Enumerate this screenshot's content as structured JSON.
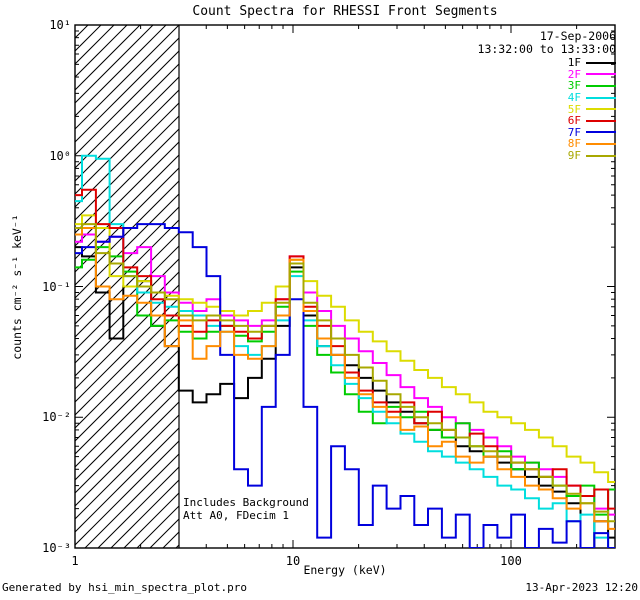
{
  "title": "Count Spectra for RHESSI Front Segments",
  "annotations": {
    "date": "17-Sep-2006",
    "time_range": "13:32:00 to 13:33:00",
    "note_line1": "Includes Background",
    "note_line2": "Att A0, FDecim 1"
  },
  "footer": {
    "left": "Generated by hsi_min_spectra_plot.pro",
    "right": "13-Apr-2023 12:20"
  },
  "chart_data": {
    "type": "line",
    "mode": "histogram-step",
    "title": "Count Spectra for RHESSI Front Segments",
    "xlabel": "Energy (keV)",
    "ylabel": "counts cm⁻² s⁻¹ keV⁻¹",
    "xscale": "log",
    "yscale": "log",
    "xlim": [
      1,
      300
    ],
    "ylim": [
      0.001,
      10
    ],
    "grid": false,
    "legend_position": "top-right",
    "x_ticks": [
      {
        "v": 1,
        "label": "1"
      },
      {
        "v": 10,
        "label": "10"
      },
      {
        "v": 100,
        "label": "100"
      }
    ],
    "y_ticks": [
      {
        "v": 10,
        "label": "10¹"
      },
      {
        "v": 1,
        "label": "10⁰"
      },
      {
        "v": 0.1,
        "label": "10⁻¹"
      },
      {
        "v": 0.01,
        "label": "10⁻²"
      },
      {
        "v": 0.001,
        "label": "10⁻³"
      }
    ],
    "hatch_region": {
      "xmin": 1,
      "xmax": 3
    },
    "energies": [
      1.0,
      1.16,
      1.34,
      1.55,
      1.79,
      2.08,
      2.4,
      2.78,
      3.22,
      3.73,
      4.31,
      4.99,
      5.78,
      6.69,
      7.74,
      8.96,
      10.4,
      12.0,
      13.9,
      16.1,
      18.6,
      21.6,
      25.0,
      28.9,
      33.5,
      38.7,
      44.8,
      51.9,
      60.1,
      69.5,
      80.5,
      93.2,
      107.8,
      124.8,
      144.5,
      167.2,
      193.6,
      224.1,
      259.4,
      300.0
    ],
    "series": [
      {
        "name": "1F",
        "color": "#000000",
        "values": [
          0.2,
          0.17,
          0.09,
          0.04,
          0.1,
          0.11,
          0.05,
          0.035,
          0.016,
          0.013,
          0.015,
          0.018,
          0.014,
          0.02,
          0.028,
          0.05,
          0.14,
          0.06,
          0.035,
          0.03,
          0.025,
          0.02,
          0.016,
          0.013,
          0.011,
          0.009,
          0.008,
          0.007,
          0.006,
          0.0055,
          0.005,
          0.0045,
          0.004,
          0.0035,
          0.003,
          0.0027,
          0.0022,
          0.0009,
          0.0016,
          0.0012
        ]
      },
      {
        "name": "2F",
        "color": "#ff00ff",
        "values": [
          0.22,
          0.25,
          0.22,
          0.24,
          0.18,
          0.2,
          0.12,
          0.09,
          0.075,
          0.065,
          0.08,
          0.06,
          0.055,
          0.05,
          0.055,
          0.08,
          0.17,
          0.09,
          0.065,
          0.05,
          0.04,
          0.032,
          0.026,
          0.021,
          0.017,
          0.014,
          0.012,
          0.01,
          0.009,
          0.008,
          0.007,
          0.006,
          0.005,
          0.0045,
          0.004,
          0.0035,
          0.003,
          0.0025,
          0.002,
          0.0018
        ]
      },
      {
        "name": "3F",
        "color": "#00cc00",
        "values": [
          0.14,
          0.16,
          0.2,
          0.17,
          0.13,
          0.06,
          0.05,
          0.055,
          0.045,
          0.04,
          0.045,
          0.05,
          0.042,
          0.038,
          0.045,
          0.07,
          0.13,
          0.05,
          0.03,
          0.022,
          0.015,
          0.011,
          0.009,
          0.012,
          0.01,
          0.011,
          0.008,
          0.007,
          0.009,
          0.006,
          0.005,
          0.0055,
          0.004,
          0.0045,
          0.0035,
          0.003,
          0.0025,
          0.003,
          0.0018,
          0.0028
        ]
      },
      {
        "name": "4F",
        "color": "#00dede",
        "values": [
          0.45,
          1.0,
          0.95,
          0.3,
          0.12,
          0.09,
          0.075,
          0.07,
          0.065,
          0.06,
          0.05,
          0.045,
          0.035,
          0.03,
          0.035,
          0.055,
          0.12,
          0.055,
          0.035,
          0.025,
          0.018,
          0.014,
          0.011,
          0.009,
          0.0075,
          0.0065,
          0.0055,
          0.005,
          0.0045,
          0.004,
          0.0035,
          0.003,
          0.0028,
          0.0024,
          0.002,
          0.0022,
          0.0016,
          0.0018,
          0.0012,
          0.001
        ]
      },
      {
        "name": "5F",
        "color": "#dcdc00",
        "values": [
          0.3,
          0.35,
          0.28,
          0.12,
          0.1,
          0.11,
          0.09,
          0.085,
          0.08,
          0.075,
          0.07,
          0.065,
          0.06,
          0.065,
          0.075,
          0.1,
          0.16,
          0.11,
          0.085,
          0.07,
          0.055,
          0.045,
          0.038,
          0.032,
          0.027,
          0.023,
          0.02,
          0.017,
          0.015,
          0.013,
          0.011,
          0.01,
          0.009,
          0.008,
          0.007,
          0.006,
          0.005,
          0.0045,
          0.0038,
          0.0032
        ]
      },
      {
        "name": "6F",
        "color": "#dd0000",
        "values": [
          0.5,
          0.55,
          0.3,
          0.28,
          0.14,
          0.12,
          0.08,
          0.06,
          0.05,
          0.045,
          0.055,
          0.05,
          0.045,
          0.04,
          0.05,
          0.08,
          0.17,
          0.07,
          0.05,
          0.035,
          0.022,
          0.016,
          0.013,
          0.011,
          0.013,
          0.009,
          0.011,
          0.008,
          0.007,
          0.0075,
          0.006,
          0.005,
          0.0045,
          0.004,
          0.0035,
          0.004,
          0.003,
          0.0025,
          0.0028,
          0.002
        ]
      },
      {
        "name": "7F",
        "color": "#0000dd",
        "values": [
          0.18,
          0.2,
          0.22,
          0.24,
          0.28,
          0.3,
          0.3,
          0.28,
          0.26,
          0.2,
          0.12,
          0.03,
          0.004,
          0.003,
          0.012,
          0.03,
          0.08,
          0.012,
          0.0012,
          0.006,
          0.004,
          0.0015,
          0.003,
          0.002,
          0.0025,
          0.0015,
          0.002,
          0.0012,
          0.0018,
          0.001,
          0.0015,
          0.0012,
          0.0018,
          0.001,
          0.0014,
          0.0011,
          0.0016,
          0.001,
          0.0013,
          0.001
        ]
      },
      {
        "name": "8F",
        "color": "#ff8c00",
        "values": [
          0.25,
          0.28,
          0.1,
          0.08,
          0.085,
          0.075,
          0.06,
          0.035,
          0.055,
          0.028,
          0.035,
          0.045,
          0.03,
          0.028,
          0.035,
          0.06,
          0.16,
          0.065,
          0.04,
          0.03,
          0.02,
          0.015,
          0.012,
          0.01,
          0.008,
          0.0085,
          0.006,
          0.0065,
          0.005,
          0.0045,
          0.005,
          0.004,
          0.0035,
          0.003,
          0.0028,
          0.0024,
          0.002,
          0.0022,
          0.0016,
          0.0014
        ]
      },
      {
        "name": "9F",
        "color": "#a8a800",
        "values": [
          0.28,
          0.3,
          0.18,
          0.15,
          0.12,
          0.1,
          0.09,
          0.08,
          0.06,
          0.055,
          0.06,
          0.055,
          0.05,
          0.045,
          0.05,
          0.075,
          0.15,
          0.075,
          0.055,
          0.04,
          0.03,
          0.024,
          0.019,
          0.015,
          0.012,
          0.01,
          0.009,
          0.008,
          0.007,
          0.006,
          0.0055,
          0.005,
          0.0045,
          0.004,
          0.0035,
          0.003,
          0.0026,
          0.0022,
          0.0019,
          0.0016
        ]
      }
    ]
  }
}
